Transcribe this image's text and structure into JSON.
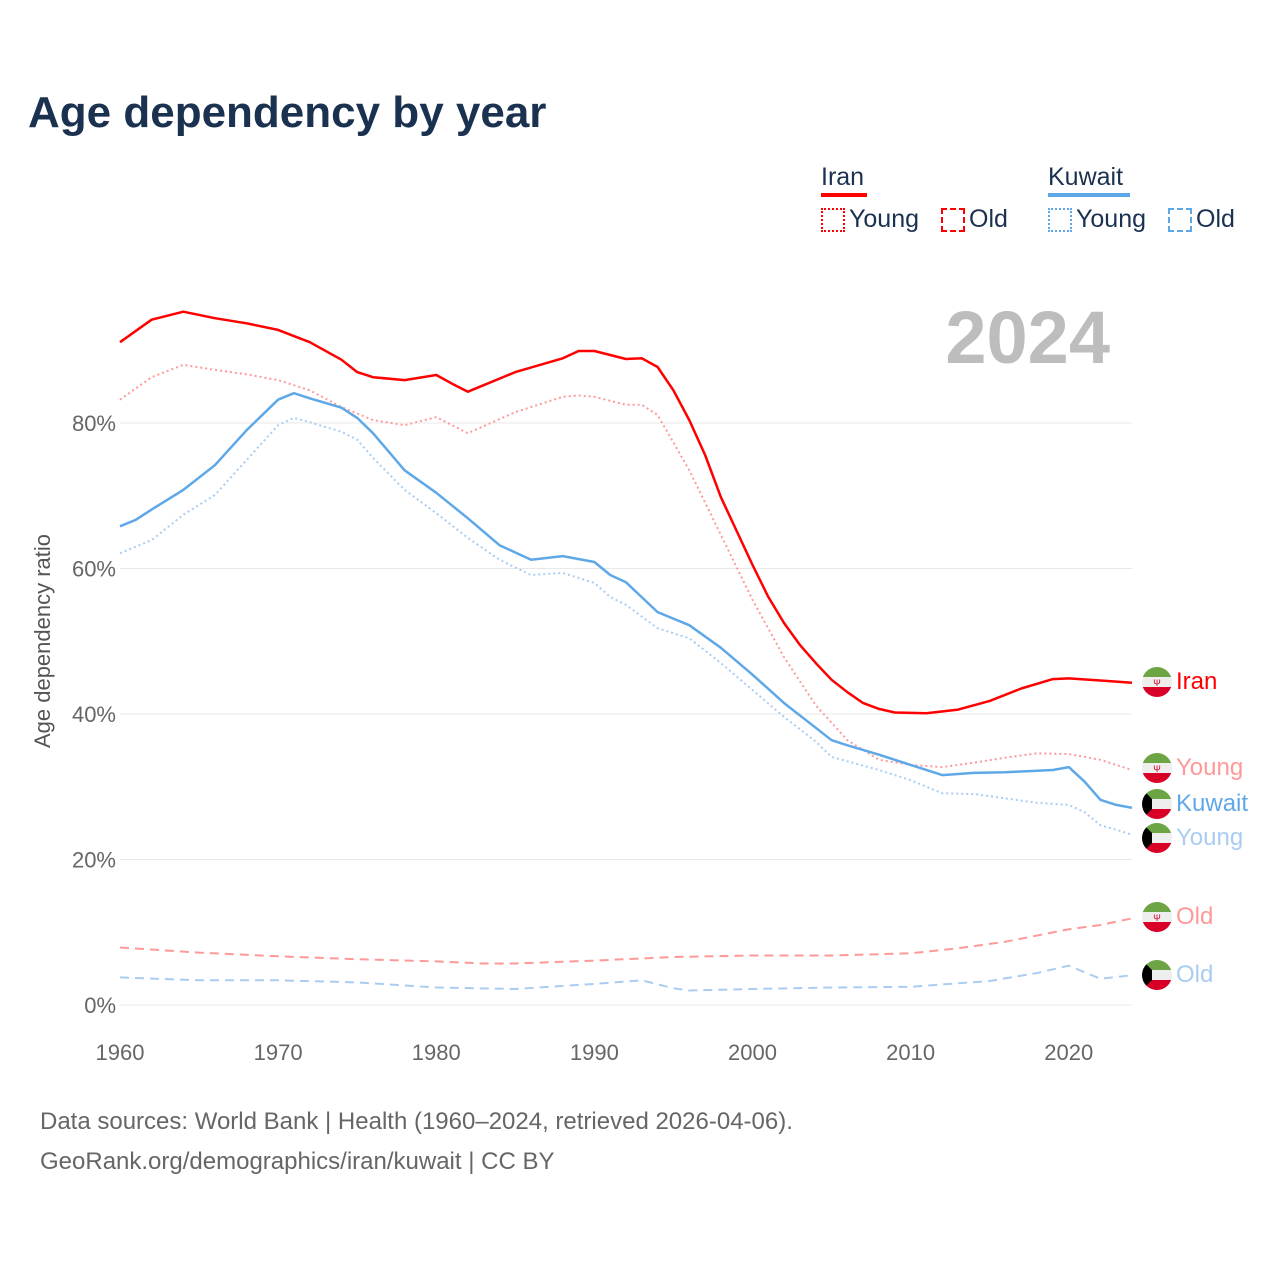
{
  "title": "Age dependency by year",
  "year_label": "2024",
  "legend": {
    "iran": {
      "name": "Iran",
      "young": "Young",
      "old": "Old"
    },
    "kuwait": {
      "name": "Kuwait",
      "young": "Young",
      "old": "Old"
    }
  },
  "end_labels": {
    "iran": "Iran",
    "iran_young": "Young",
    "kuwait": "Kuwait",
    "kuwait_young": "Young",
    "iran_old": "Old",
    "kuwait_old": "Old"
  },
  "sources": {
    "line1": "Data sources: World Bank | Health (1960–2024, retrieved 2026-04-06).",
    "line2": "GeoRank.org/demographics/iran/kuwait | CC BY"
  },
  "colors": {
    "iran": "#ff0000",
    "iran_light": "#ff9999",
    "kuwait": "#5fa8e8",
    "kuwait_light": "#a9cdf2"
  },
  "chart_data": {
    "type": "line",
    "title": "Age dependency by year",
    "xlabel": "",
    "ylabel": "Age dependency ratio",
    "xlim": [
      1960,
      2024
    ],
    "ylim": [
      0,
      100
    ],
    "x_ticks": [
      "1960",
      "1970",
      "1980",
      "1990",
      "2000",
      "2010",
      "2020"
    ],
    "y_ticks": [
      "0%",
      "20%",
      "40%",
      "60%",
      "80%"
    ],
    "grid": true,
    "legend_position": "top-right",
    "series": [
      {
        "name": "Iran",
        "key": "iran",
        "style": "solid",
        "points": [
          [
            1960,
            91.1
          ],
          [
            1962,
            94.2
          ],
          [
            1964,
            95.3
          ],
          [
            1966,
            94.4
          ],
          [
            1968,
            93.7
          ],
          [
            1970,
            92.8
          ],
          [
            1972,
            91.1
          ],
          [
            1974,
            88.7
          ],
          [
            1975,
            87.0
          ],
          [
            1976,
            86.3
          ],
          [
            1978,
            85.9
          ],
          [
            1980,
            86.6
          ],
          [
            1981,
            85.4
          ],
          [
            1982,
            84.3
          ],
          [
            1985,
            87.0
          ],
          [
            1988,
            88.9
          ],
          [
            1989,
            89.9
          ],
          [
            1990,
            89.9
          ],
          [
            1992,
            88.8
          ],
          [
            1993,
            88.9
          ],
          [
            1994,
            87.7
          ],
          [
            1995,
            84.5
          ],
          [
            1996,
            80.4
          ],
          [
            1997,
            75.6
          ],
          [
            1998,
            69.8
          ],
          [
            2000,
            60.5
          ],
          [
            2001,
            56.1
          ],
          [
            2002,
            52.5
          ],
          [
            2003,
            49.5
          ],
          [
            2004,
            47.0
          ],
          [
            2005,
            44.7
          ],
          [
            2006,
            43.0
          ],
          [
            2007,
            41.5
          ],
          [
            2008,
            40.7
          ],
          [
            2009,
            40.2
          ],
          [
            2011,
            40.1
          ],
          [
            2013,
            40.6
          ],
          [
            2015,
            41.8
          ],
          [
            2017,
            43.5
          ],
          [
            2019,
            44.8
          ],
          [
            2020,
            44.9
          ],
          [
            2022,
            44.6
          ],
          [
            2024,
            44.3
          ]
        ]
      },
      {
        "name": "Iran Young",
        "key": "iran_young",
        "style": "dotted",
        "points": [
          [
            1960,
            83.2
          ],
          [
            1962,
            86.3
          ],
          [
            1964,
            88.0
          ],
          [
            1966,
            87.3
          ],
          [
            1968,
            86.7
          ],
          [
            1970,
            85.9
          ],
          [
            1972,
            84.5
          ],
          [
            1974,
            82.2
          ],
          [
            1976,
            80.4
          ],
          [
            1978,
            79.7
          ],
          [
            1980,
            80.8
          ],
          [
            1982,
            78.6
          ],
          [
            1985,
            81.5
          ],
          [
            1988,
            83.6
          ],
          [
            1989,
            83.8
          ],
          [
            1990,
            83.6
          ],
          [
            1992,
            82.5
          ],
          [
            1993,
            82.5
          ],
          [
            1994,
            81.1
          ],
          [
            1996,
            73.5
          ],
          [
            1998,
            64.6
          ],
          [
            2000,
            55.7
          ],
          [
            2002,
            47.8
          ],
          [
            2004,
            41.2
          ],
          [
            2006,
            36.4
          ],
          [
            2008,
            33.7
          ],
          [
            2010,
            33.0
          ],
          [
            2012,
            32.7
          ],
          [
            2014,
            33.3
          ],
          [
            2016,
            34.0
          ],
          [
            2018,
            34.6
          ],
          [
            2020,
            34.5
          ],
          [
            2022,
            33.7
          ],
          [
            2024,
            32.3
          ]
        ]
      },
      {
        "name": "Iran Old",
        "key": "iran_old",
        "style": "dashed",
        "points": [
          [
            1960,
            7.9
          ],
          [
            1965,
            7.2
          ],
          [
            1970,
            6.7
          ],
          [
            1975,
            6.3
          ],
          [
            1980,
            6.0
          ],
          [
            1983,
            5.7
          ],
          [
            1985,
            5.7
          ],
          [
            1990,
            6.1
          ],
          [
            1995,
            6.6
          ],
          [
            2000,
            6.8
          ],
          [
            2005,
            6.8
          ],
          [
            2010,
            7.1
          ],
          [
            2013,
            7.8
          ],
          [
            2016,
            8.7
          ],
          [
            2020,
            10.4
          ],
          [
            2022,
            11.0
          ],
          [
            2024,
            11.9
          ]
        ]
      },
      {
        "name": "Kuwait",
        "key": "kuwait",
        "style": "solid",
        "points": [
          [
            1960,
            65.8
          ],
          [
            1961,
            66.7
          ],
          [
            1962,
            68.1
          ],
          [
            1964,
            70.8
          ],
          [
            1966,
            74.2
          ],
          [
            1968,
            79.0
          ],
          [
            1970,
            83.2
          ],
          [
            1971,
            84.1
          ],
          [
            1972,
            83.4
          ],
          [
            1974,
            82.1
          ],
          [
            1975,
            80.7
          ],
          [
            1976,
            78.6
          ],
          [
            1978,
            73.5
          ],
          [
            1980,
            70.4
          ],
          [
            1982,
            66.9
          ],
          [
            1984,
            63.2
          ],
          [
            1986,
            61.2
          ],
          [
            1988,
            61.7
          ],
          [
            1990,
            60.9
          ],
          [
            1991,
            59.1
          ],
          [
            1992,
            58.1
          ],
          [
            1994,
            54.0
          ],
          [
            1996,
            52.2
          ],
          [
            1998,
            49.1
          ],
          [
            2000,
            45.4
          ],
          [
            2002,
            41.5
          ],
          [
            2004,
            38.1
          ],
          [
            2005,
            36.4
          ],
          [
            2006,
            35.7
          ],
          [
            2008,
            34.4
          ],
          [
            2010,
            33.0
          ],
          [
            2012,
            31.6
          ],
          [
            2014,
            31.9
          ],
          [
            2016,
            32.0
          ],
          [
            2018,
            32.2
          ],
          [
            2019,
            32.3
          ],
          [
            2020,
            32.7
          ],
          [
            2021,
            30.7
          ],
          [
            2022,
            28.2
          ],
          [
            2023,
            27.5
          ],
          [
            2024,
            27.1
          ]
        ]
      },
      {
        "name": "Kuwait Young",
        "key": "kuwait_young",
        "style": "dotted",
        "points": [
          [
            1960,
            62.1
          ],
          [
            1962,
            63.9
          ],
          [
            1964,
            67.4
          ],
          [
            1966,
            70.1
          ],
          [
            1968,
            74.9
          ],
          [
            1970,
            79.7
          ],
          [
            1971,
            80.7
          ],
          [
            1972,
            80.1
          ],
          [
            1974,
            78.8
          ],
          [
            1975,
            77.7
          ],
          [
            1976,
            75.2
          ],
          [
            1978,
            70.8
          ],
          [
            1980,
            67.6
          ],
          [
            1982,
            64.2
          ],
          [
            1984,
            61.2
          ],
          [
            1986,
            59.1
          ],
          [
            1988,
            59.4
          ],
          [
            1990,
            58.0
          ],
          [
            1991,
            56.1
          ],
          [
            1992,
            55.0
          ],
          [
            1994,
            51.8
          ],
          [
            1996,
            50.4
          ],
          [
            1998,
            47.0
          ],
          [
            2000,
            43.3
          ],
          [
            2002,
            39.6
          ],
          [
            2004,
            36.2
          ],
          [
            2005,
            34.1
          ],
          [
            2008,
            32.3
          ],
          [
            2010,
            30.9
          ],
          [
            2012,
            29.1
          ],
          [
            2014,
            29.0
          ],
          [
            2016,
            28.4
          ],
          [
            2018,
            27.8
          ],
          [
            2020,
            27.5
          ],
          [
            2021,
            26.5
          ],
          [
            2022,
            24.7
          ],
          [
            2023,
            24.1
          ],
          [
            2024,
            23.4
          ]
        ]
      },
      {
        "name": "Kuwait Old",
        "key": "kuwait_old",
        "style": "dashed",
        "points": [
          [
            1960,
            3.8
          ],
          [
            1965,
            3.4
          ],
          [
            1970,
            3.4
          ],
          [
            1975,
            3.1
          ],
          [
            1980,
            2.4
          ],
          [
            1985,
            2.2
          ],
          [
            1990,
            2.9
          ],
          [
            1993,
            3.4
          ],
          [
            1995,
            2.3
          ],
          [
            1996,
            2.0
          ],
          [
            2000,
            2.2
          ],
          [
            2005,
            2.4
          ],
          [
            2010,
            2.5
          ],
          [
            2015,
            3.3
          ],
          [
            2018,
            4.4
          ],
          [
            2020,
            5.4
          ],
          [
            2022,
            3.6
          ],
          [
            2024,
            4.1
          ]
        ]
      }
    ]
  }
}
